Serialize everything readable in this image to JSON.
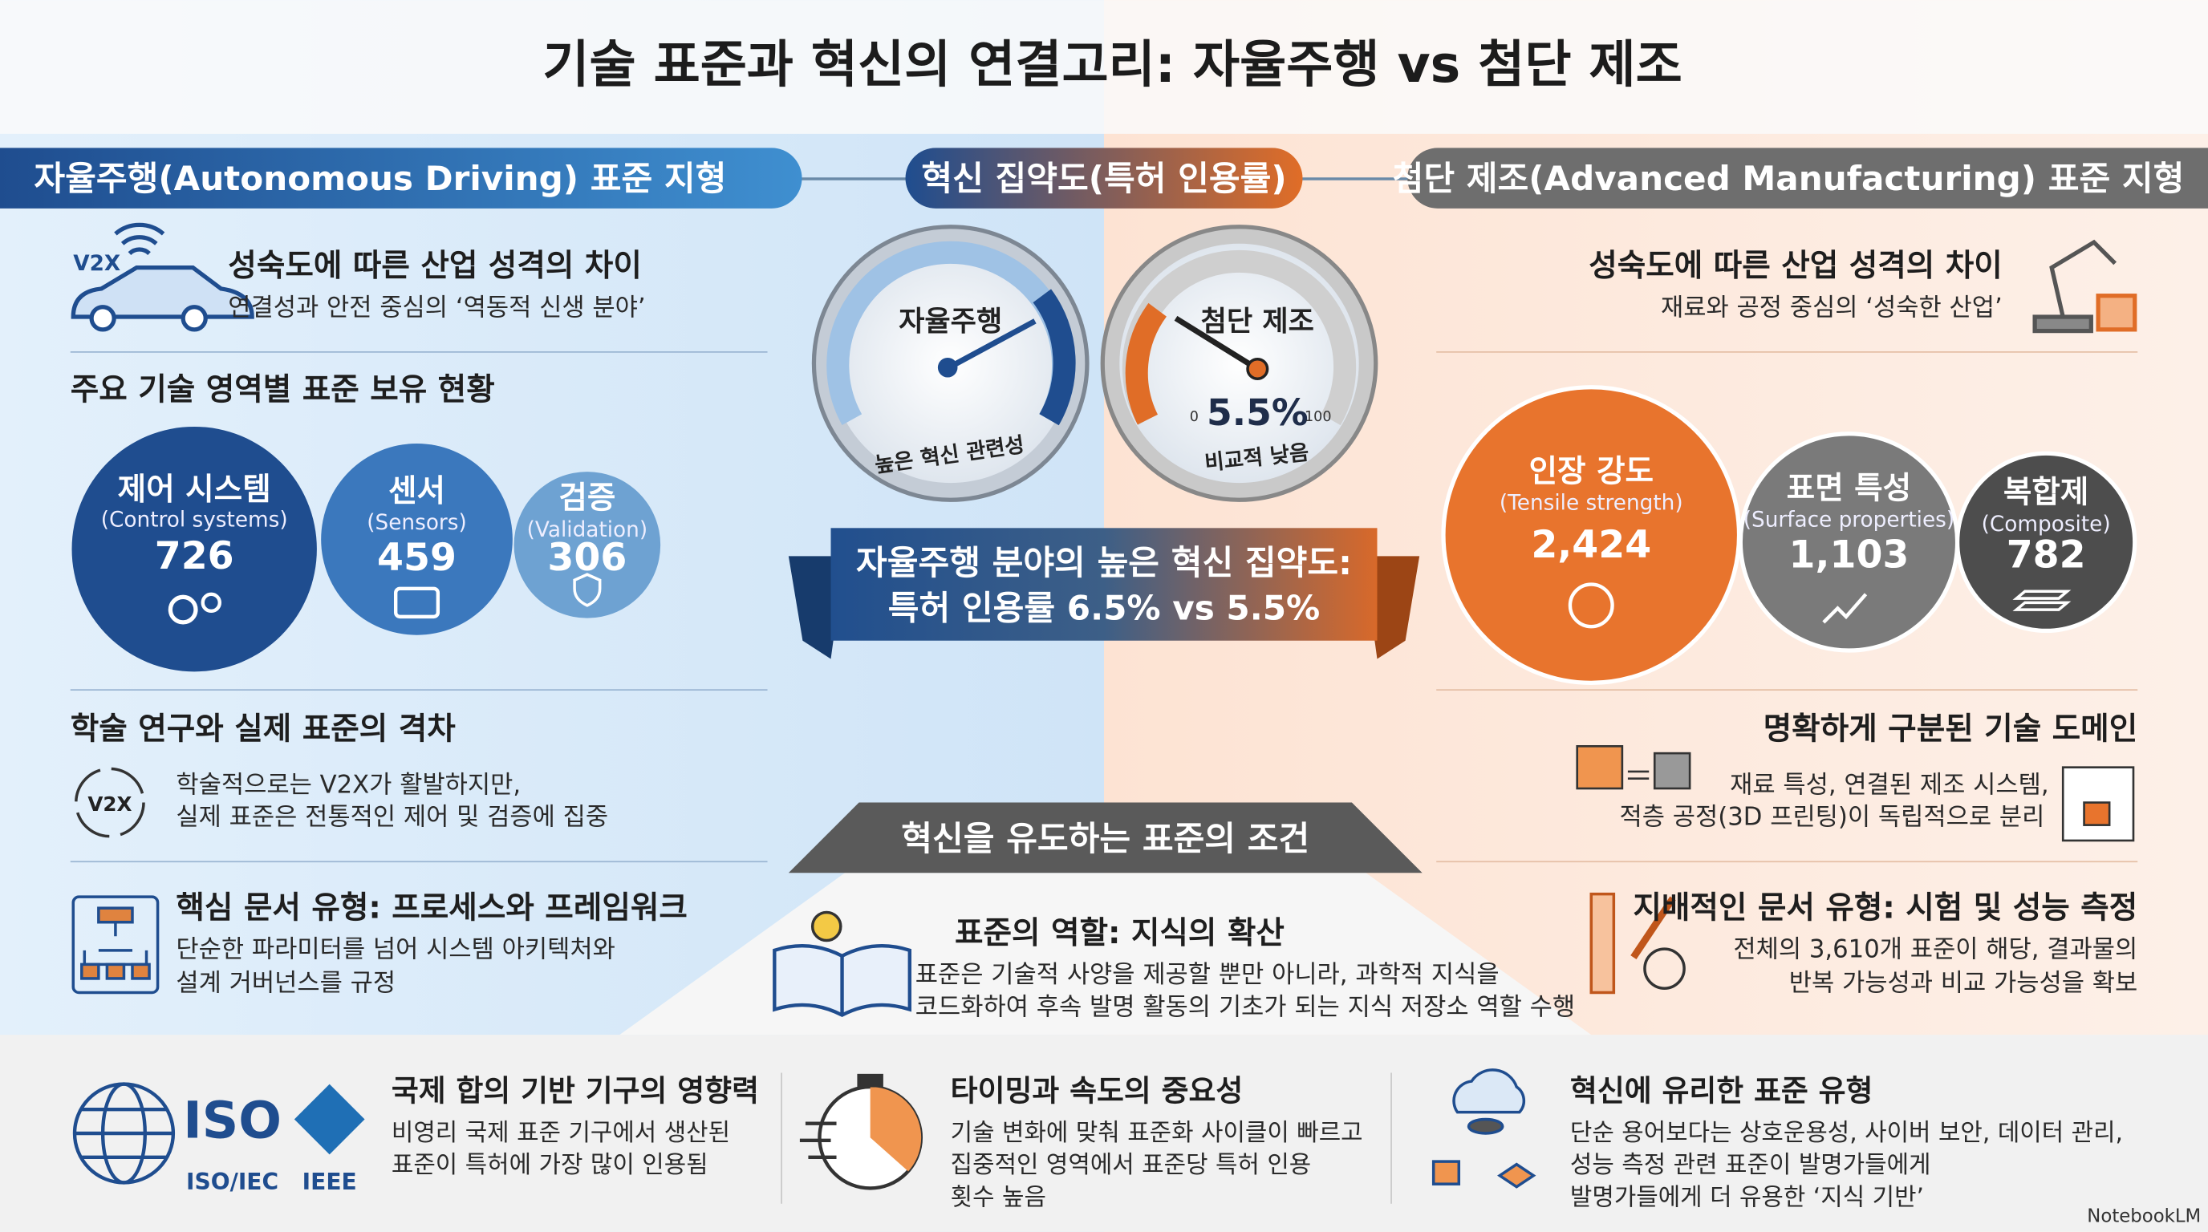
{
  "title": "기술 표준과 혁신의 연결고리: 자율주행 vs 첨단 제조",
  "left": {
    "header": "자율주행(Autonomous Driving) 표준 지형",
    "maturity": {
      "icon_label": "V2X",
      "title": "성숙도에 따른 산업 성격의 차이",
      "text": "연결성과 안전 중심의 ‘역동적 신생 분야’"
    },
    "holdings": {
      "title": "주요 기술 영역별 표준 보유 현황",
      "items": [
        {
          "name": "제어 시스템",
          "en": "(Control systems)",
          "count": "726"
        },
        {
          "name": "센서",
          "en": "(Sensors)",
          "count": "459"
        },
        {
          "name": "검증",
          "en": "(Validation)",
          "count": "306"
        }
      ]
    },
    "gap": {
      "title": "학술 연구와 실제 표준의 격차",
      "icon_label": "V2X",
      "lines": [
        "학술적으로는 V2X가 활발하지만,",
        "실제 표준은 전통적인 제어 및 검증에 집중"
      ]
    },
    "docs": {
      "title": "핵심 문서 유형: 프로세스와 프레임워크",
      "lines": [
        "단순한 파라미터를 넘어 시스템 아키텍처와",
        "설계 거버넌스를 규정"
      ]
    }
  },
  "center": {
    "header": "혁신 집약도(특허 인용률)",
    "gauge_left": {
      "label": "자율주행",
      "caption": "높은 혁신 관련성"
    },
    "gauge_right": {
      "label": "첨단 제조",
      "value": "5.5%",
      "min": "0",
      "max": "100",
      "caption": "비교적 낮음"
    },
    "banner": [
      "자율주행 분야의 높은 혁신 집약도:",
      "특허 인용률 6.5% vs 5.5%"
    ],
    "conditions": {
      "header": "혁신을 유도하는 표준의 조건",
      "title": "표준의 역할: 지식의 확산",
      "lines": [
        "표준은 기술적 사양을 제공할 뿐만 아니라, 과학적 지식을",
        "코드화하여 후속 발명 활동의 기초가 되는 지식 저장소 역할 수행"
      ]
    }
  },
  "right": {
    "header": "첨단 제조(Advanced Manufacturing) 표준 지형",
    "maturity": {
      "title": "성숙도에 따른 산업 성격의 차이",
      "text": "재료와 공정 중심의 ‘성숙한 산업’"
    },
    "holdings": {
      "items": [
        {
          "name": "인장 강도",
          "en": "(Tensile strength)",
          "count": "2,424"
        },
        {
          "name": "표면 특성",
          "en": "(Surface properties)",
          "count": "1,103"
        },
        {
          "name": "복합제",
          "en": "(Composite)",
          "count": "782"
        }
      ]
    },
    "domains": {
      "title": "명확하게 구분된 기술 도메인",
      "lines": [
        "재료 특성, 연결된 제조 시스템,",
        "적층 공정(3D 프린팅)이 독립적으로 분리"
      ]
    },
    "docs": {
      "title": "지배적인 문서 유형: 시험 및 성능 측정",
      "lines": [
        "전체의 3,610개 표준이 해당, 결과물의",
        "반복 가능성과 비교 가능성을 확보"
      ]
    }
  },
  "footer": {
    "items": [
      {
        "logos": [
          "ISO",
          "ISO/IEC",
          "IEEE"
        ],
        "title": "국제 합의 기반 기구의 영향력",
        "lines": [
          "비영리 국제 표준 기구에서 생산된",
          "표준이 특허에 가장 많이 인용됨"
        ]
      },
      {
        "title": "타이밍과 속도의 중요성",
        "lines": [
          "기술 변화에 맞춰 표준화 사이클이 빠르고",
          "집중적인 영역에서 표준당 특허 인용",
          "횟수 높음"
        ]
      },
      {
        "title": "혁신에 유리한 표준 유형",
        "lines": [
          "단순 용어보다는 상호운용성, 사이버 보안, 데이터 관리,",
          "성능 측정 관련 표준이 발명가들에게",
          "발명가들에게 더 유용한 ‘지식 기반’"
        ]
      }
    ],
    "brand": "NotebookLM"
  }
}
